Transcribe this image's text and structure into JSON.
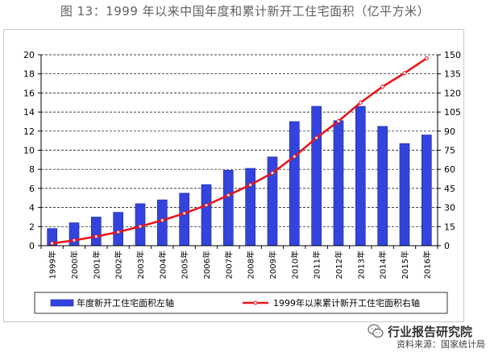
{
  "figure": {
    "title": "图 13：1999 年以来中国年度和累计新开工住宅面积（亿平方米）"
  },
  "colors": {
    "bar": "#3344dd",
    "bar_edge": "#1a22a8",
    "line": "#e8161a",
    "marker_fill": "#ffffff",
    "grid": "#000000",
    "axis": "#000000"
  },
  "chart_data": {
    "type": "bar",
    "categories": [
      "1999年",
      "2000年",
      "2001年",
      "2002年",
      "2003年",
      "2004年",
      "2005年",
      "2006年",
      "2007年",
      "2008年",
      "2009年",
      "2010年",
      "2011年",
      "2012年",
      "2013年",
      "2014年",
      "2015年",
      "2016年"
    ],
    "series": [
      {
        "name": "年度新开工住宅面积左轴",
        "type": "bar",
        "axis": "left",
        "values": [
          1.8,
          2.4,
          3.0,
          3.5,
          4.4,
          4.8,
          5.5,
          6.4,
          7.9,
          8.1,
          9.3,
          13.0,
          14.6,
          13.1,
          14.6,
          12.5,
          10.7,
          11.6
        ]
      },
      {
        "name": "1999年以来累计新开工住宅面积右轴",
        "type": "line",
        "axis": "right",
        "values": [
          1.8,
          4.2,
          7.2,
          10.7,
          15.1,
          19.9,
          25.4,
          31.8,
          39.7,
          47.8,
          57.1,
          70.1,
          84.7,
          97.8,
          112.4,
          124.9,
          135.6,
          147.2
        ]
      }
    ],
    "y_left": {
      "min": 0,
      "max": 20,
      "ticks": [
        "0",
        "2",
        "4",
        "6",
        "8",
        "10",
        "12",
        "14",
        "16",
        "18",
        "20"
      ]
    },
    "y_right": {
      "min": 0,
      "max": 150,
      "ticks": [
        "0",
        "15",
        "30",
        "45",
        "60",
        "75",
        "90",
        "105",
        "120",
        "135",
        "150"
      ]
    },
    "grid": "horizontal-dashed",
    "legend": "bottom"
  },
  "watermark": {
    "text": "行业报告研究院",
    "icon": "wechat-icon"
  },
  "source": {
    "text": "资料来源：国家统计局"
  }
}
